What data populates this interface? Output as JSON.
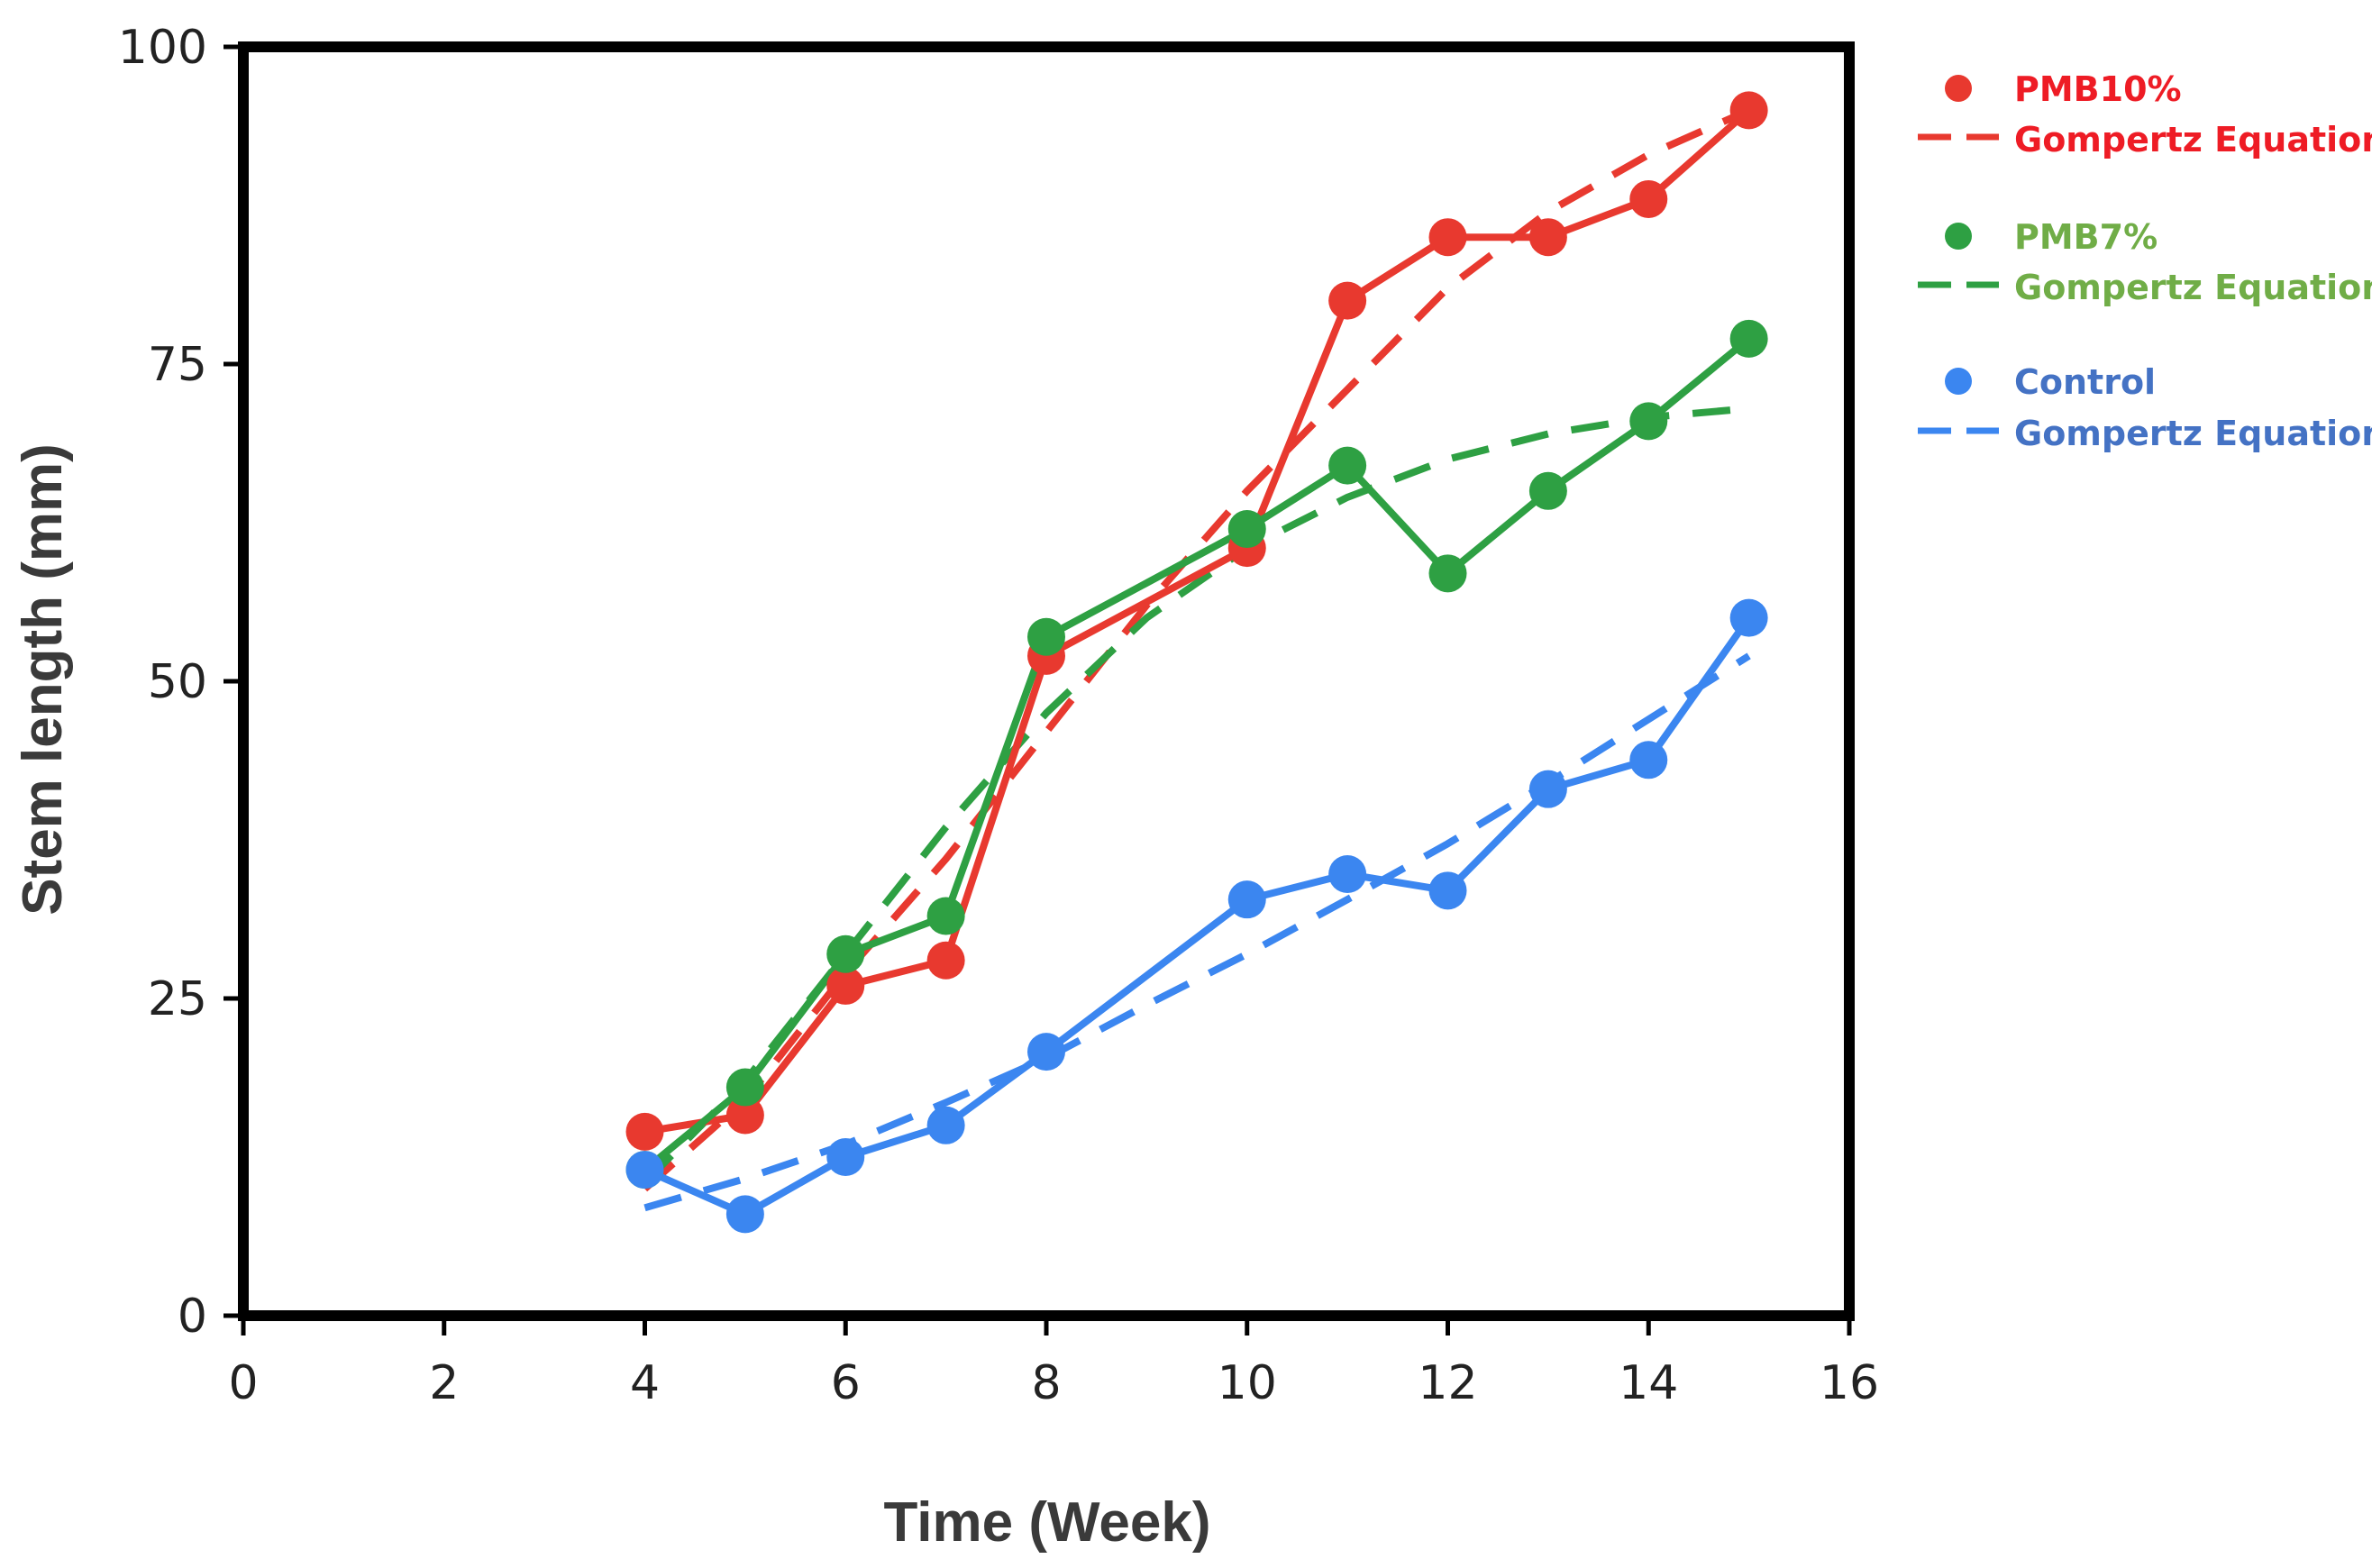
{
  "chart_data": {
    "type": "line",
    "title": "",
    "xlabel": "Time (Week)",
    "ylabel": "Stem length (mm)",
    "xlim": [
      0,
      16
    ],
    "ylim": [
      0,
      100
    ],
    "xticks": [
      0,
      2,
      4,
      6,
      8,
      10,
      12,
      14,
      16
    ],
    "yticks": [
      0,
      25,
      50,
      75,
      100
    ],
    "grid": false,
    "legend_position": "outside-right",
    "series": [
      {
        "name": "PMB10%",
        "kind": "observed",
        "color": "#e8392f",
        "x": [
          4,
          5,
          6,
          7,
          8,
          10,
          11,
          12,
          13,
          14,
          15
        ],
        "y": [
          14.5,
          15.8,
          26,
          28,
          52,
          60.5,
          80,
          85,
          85,
          88,
          95
        ]
      },
      {
        "name": "Gompertz Equation",
        "kind": "fit",
        "group": "PMB10%",
        "color": "#e8392f",
        "x": [
          4,
          5,
          6,
          7,
          8,
          9,
          10,
          11,
          12,
          13,
          14,
          15
        ],
        "y": [
          10,
          17,
          27,
          36,
          46,
          56,
          65,
          73,
          81,
          87,
          91.5,
          95
        ]
      },
      {
        "name": "PMB7%",
        "kind": "observed",
        "color": "#2ea043",
        "x": [
          4,
          5,
          6,
          7,
          8,
          10,
          11,
          12,
          13,
          14,
          15
        ],
        "y": [
          11.5,
          18,
          28.5,
          31.5,
          53.5,
          62,
          67,
          58.5,
          65,
          70.5,
          77
        ]
      },
      {
        "name": "Gompertz Equation",
        "kind": "fit",
        "group": "PMB7%",
        "color": "#2ea043",
        "x": [
          4,
          5,
          6,
          7,
          8,
          9,
          10,
          11,
          12,
          13,
          14,
          15
        ],
        "y": [
          10.5,
          18.5,
          28.5,
          38.5,
          47.5,
          55,
          60.5,
          64.5,
          67.5,
          69.5,
          70.8,
          71.5
        ]
      },
      {
        "name": "Control",
        "kind": "observed",
        "color": "#3b86f0",
        "x": [
          4,
          5,
          6,
          7,
          8,
          10,
          11,
          12,
          13,
          14,
          15
        ],
        "y": [
          11.5,
          8,
          12.5,
          15,
          20.8,
          32.8,
          34.8,
          33.5,
          41.5,
          43.8,
          55
        ]
      },
      {
        "name": "Gompertz Equation",
        "kind": "fit",
        "group": "Control",
        "color": "#3b86f0",
        "x": [
          4,
          5,
          6,
          7,
          8,
          9,
          10,
          11,
          12,
          13,
          14,
          15
        ],
        "y": [
          8.5,
          10.8,
          13.5,
          16.8,
          20.3,
          24.5,
          28.5,
          32.8,
          37.2,
          42,
          47,
          52
        ]
      }
    ],
    "legend": [
      {
        "label": "PMB10%",
        "marker": "dot",
        "color": "#e8392f",
        "text_color": "#ee1c25"
      },
      {
        "label": "Gompertz Equation",
        "marker": "dash",
        "color": "#e8392f",
        "text_color": "#ee1c25"
      },
      {
        "label": "PMB7%",
        "marker": "dot",
        "color": "#2ea043",
        "text_color": "#70ad47"
      },
      {
        "label": "Gompertz Equation",
        "marker": "dash",
        "color": "#2ea043",
        "text_color": "#70ad47"
      },
      {
        "label": "Control",
        "marker": "dot",
        "color": "#3b86f0",
        "text_color": "#4472c4"
      },
      {
        "label": "Gompertz Equation",
        "marker": "dash",
        "color": "#3b86f0",
        "text_color": "#4472c4"
      }
    ]
  }
}
